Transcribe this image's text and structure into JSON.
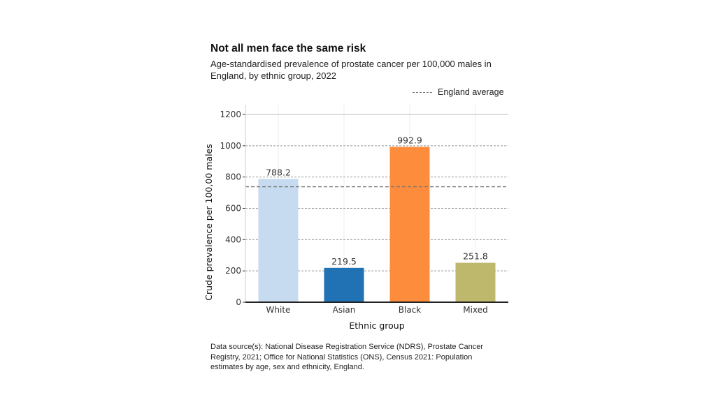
{
  "chart_data": {
    "type": "bar",
    "title": "Not all men face the same risk",
    "subtitle": "Age-standardised prevalence of prostate cancer per 100,000 males in England, by ethnic group, 2022",
    "xlabel": "Ethnic group",
    "ylabel": "Crude prevalence per 100,00 males",
    "categories": [
      "White",
      "Asian",
      "Black",
      "Mixed"
    ],
    "values": [
      788.2,
      219.5,
      992.9,
      251.8
    ],
    "value_labels": [
      "788.2",
      "219.5",
      "992.9",
      "251.8"
    ],
    "colors": [
      "#c6dbef",
      "#2171b5",
      "#fd8d3c",
      "#bdb86c"
    ],
    "ylim": [
      0,
      1200
    ],
    "yticks": [
      0,
      200,
      400,
      600,
      800,
      1000,
      1200
    ],
    "reference_line": {
      "label": "England average",
      "value": 738,
      "color": "#777777",
      "style": "dashed"
    },
    "grid": true,
    "legend_position": "top-right"
  },
  "source_note": "Data source(s): National Disease Registration Service (NDRS), Prostate Cancer Registry, 2021; Office for National Statistics (ONS), Census 2021: Population estimates by age, sex and ethnicity, England."
}
